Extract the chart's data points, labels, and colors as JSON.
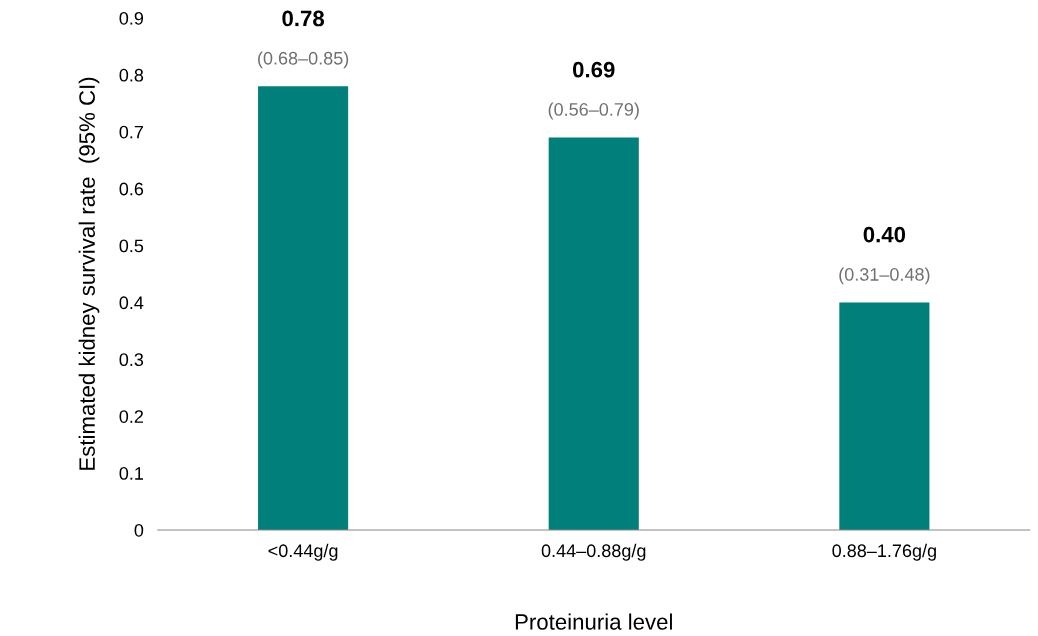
{
  "chart_data": {
    "type": "bar",
    "categories": [
      "<0.44g/g",
      "0.44–0.88g/g",
      "0.88–1.76g/g"
    ],
    "values": [
      0.78,
      0.69,
      0.4
    ],
    "color": "#007f7b",
    "value_labels": [
      "0.78",
      "0.69",
      "0.40"
    ],
    "annotations": [
      {
        "text": "(0.68–0.85)",
        "x": "<0.44g/g",
        "y": 0.78
      },
      {
        "text": "(0.56–0.79)",
        "x": "0.44–0.88g/g",
        "y": 0.69
      },
      {
        "text": "(0.31–0.48)",
        "x": "0.88–1.76g/g",
        "y": 0.4
      }
    ],
    "xlabel": "Proteinuria level",
    "ylabel": "Estimated kidney survival rate  (95% CI)",
    "ylim": [
      0,
      0.9
    ],
    "yticks": [
      0,
      0.1,
      0.2,
      0.3,
      0.4,
      0.5,
      0.6,
      0.7,
      0.8,
      0.9
    ],
    "grid": false,
    "legend": false
  }
}
